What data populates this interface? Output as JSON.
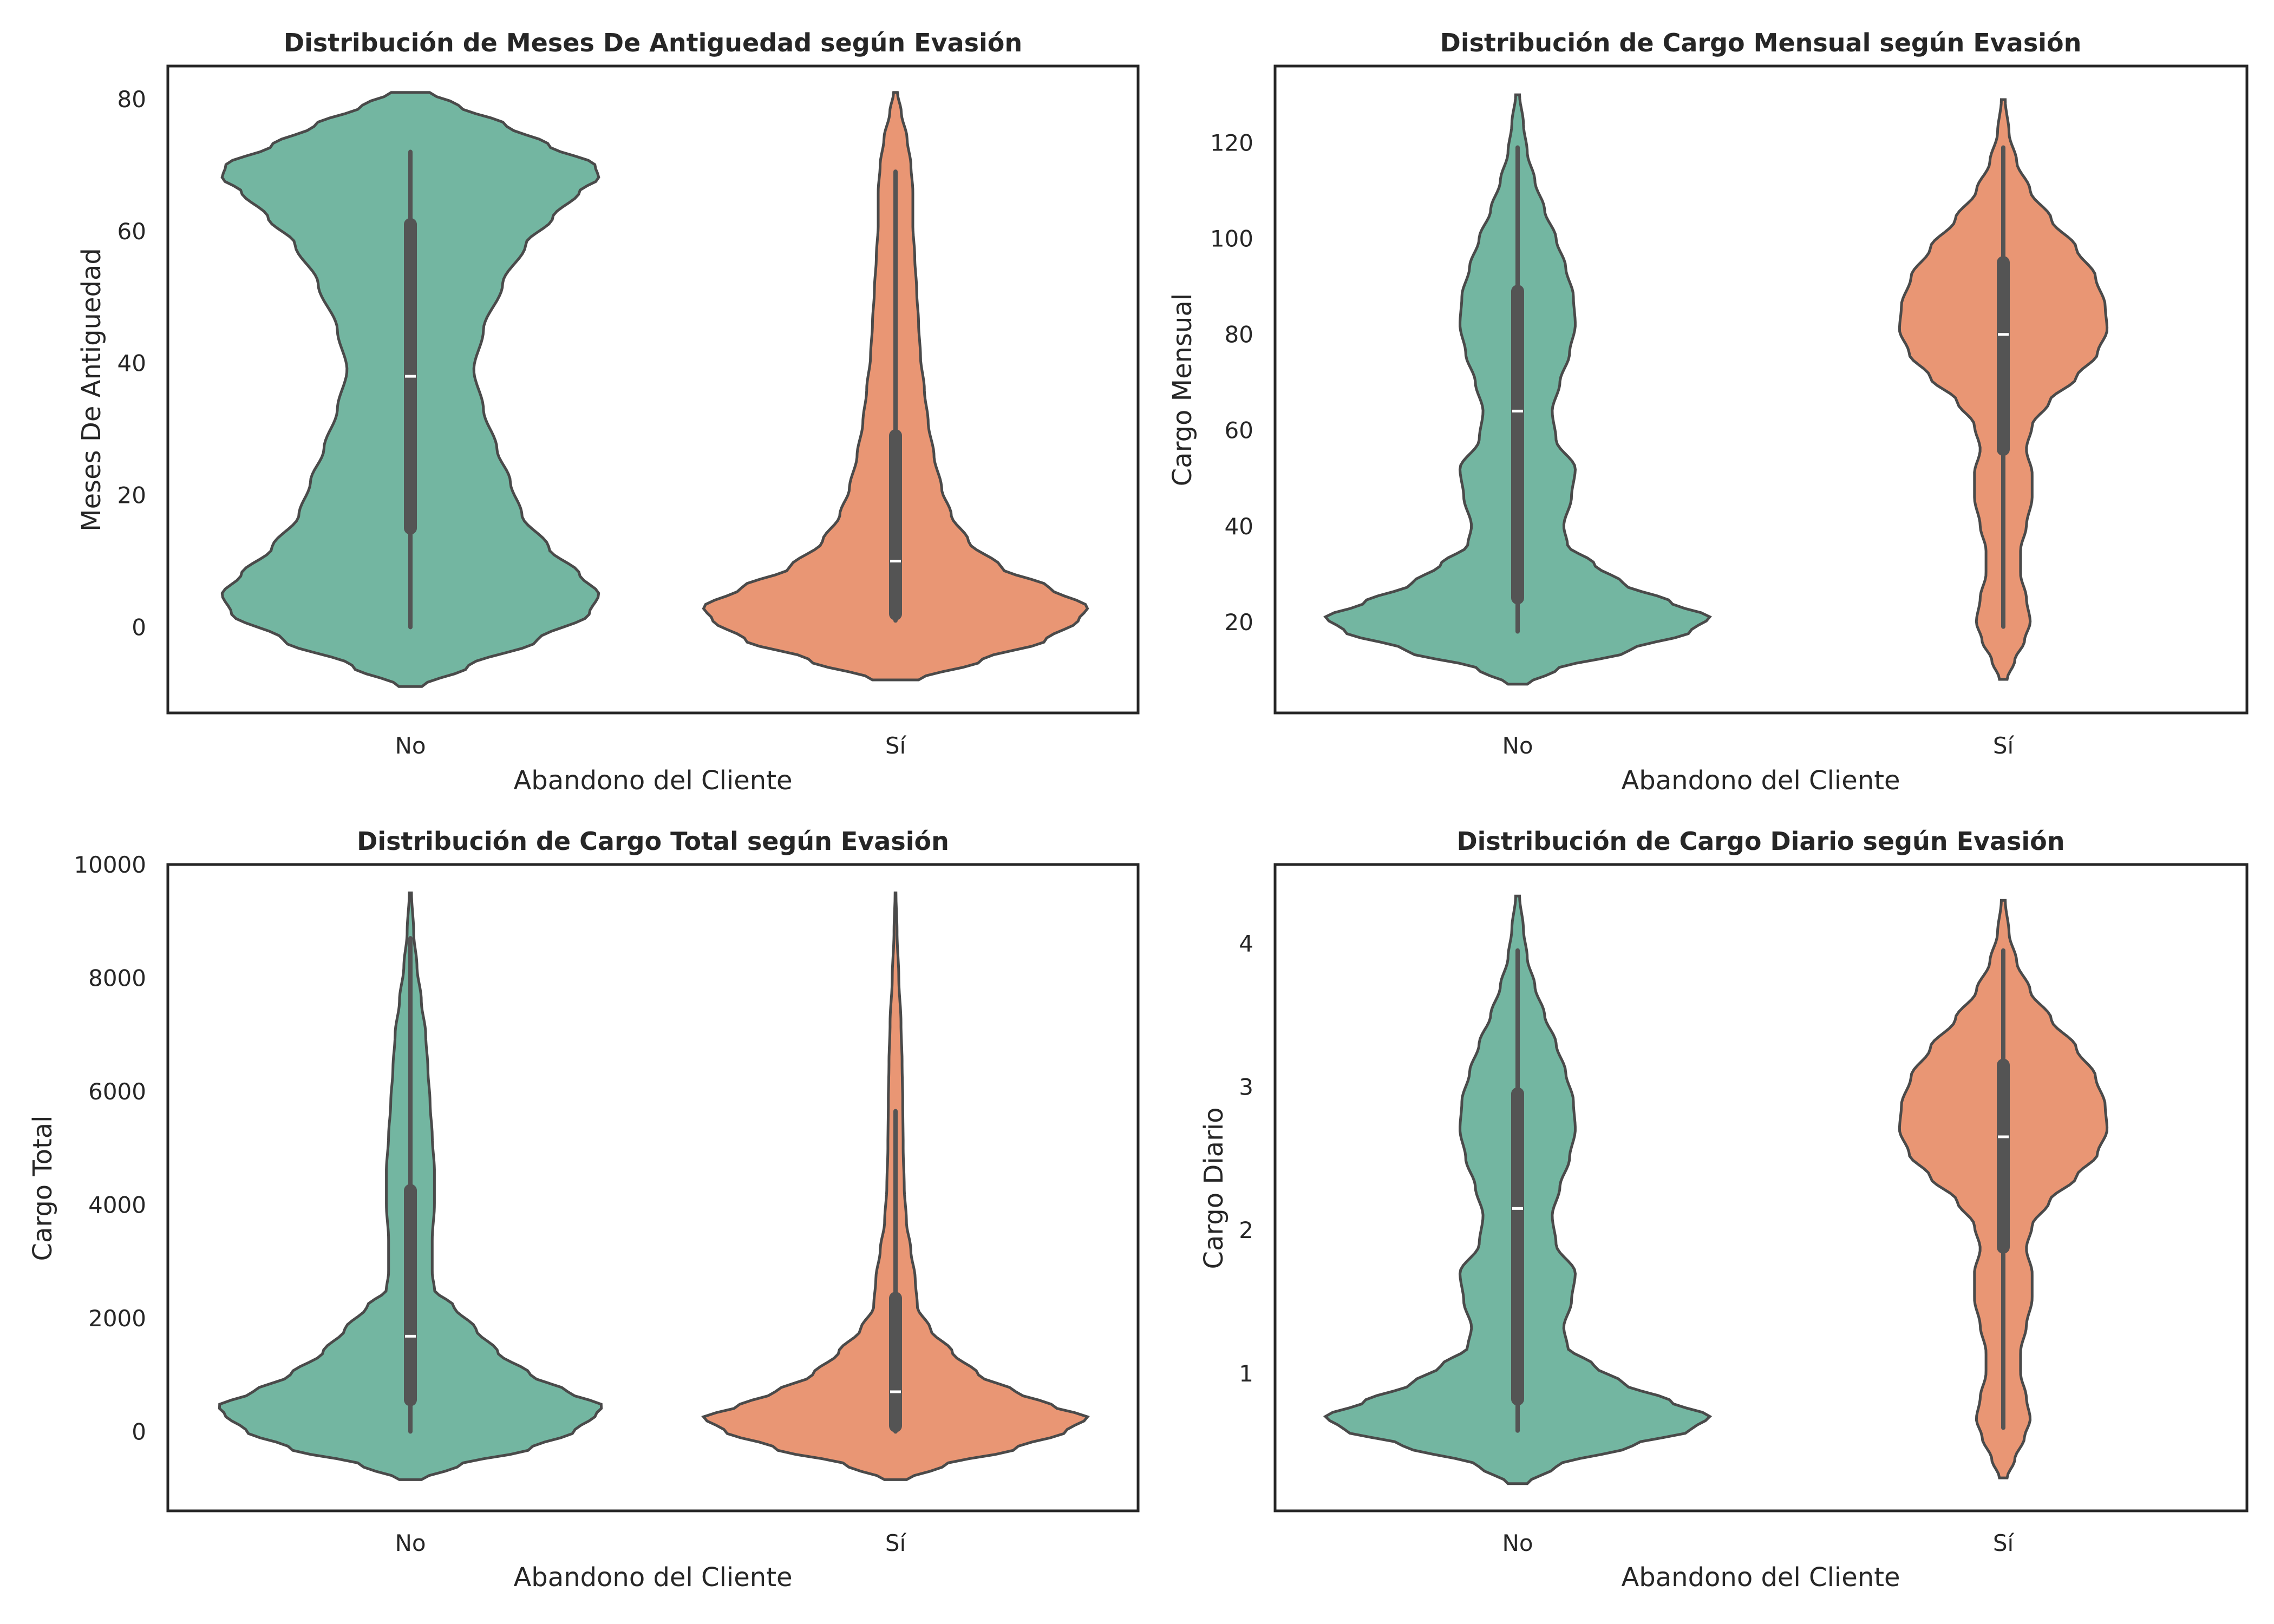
{
  "figure": {
    "colors": {
      "No": "#73b6a1",
      "Sí": "#e99674",
      "outline": "#4a4a4a",
      "box": "#545454",
      "median": "#ffffff"
    }
  },
  "chart_data": [
    {
      "type": "violin",
      "title": "Distribución de Meses De Antiguedad según Evasión",
      "xlabel": "Abandono del Cliente",
      "ylabel": "Meses De Antiguedad",
      "categories": [
        "No",
        "Sí"
      ],
      "ylim": [
        -13,
        85
      ],
      "yticks": [
        "0",
        "20",
        "40",
        "60",
        "80"
      ],
      "grid": false,
      "series": [
        {
          "category": "No",
          "color": "#73b6a1",
          "whisker": [
            0,
            72
          ],
          "box": [
            15,
            61
          ],
          "median": 38,
          "density_range": [
            -9,
            81
          ],
          "density": [
            [
              -9,
              0.06
            ],
            [
              -6,
              0.3
            ],
            [
              -2,
              0.66
            ],
            [
              2,
              0.93
            ],
            [
              5,
              0.98
            ],
            [
              8,
              0.88
            ],
            [
              12,
              0.72
            ],
            [
              17,
              0.58
            ],
            [
              22,
              0.52
            ],
            [
              27,
              0.45
            ],
            [
              33,
              0.38
            ],
            [
              39,
              0.33
            ],
            [
              45,
              0.38
            ],
            [
              52,
              0.48
            ],
            [
              58,
              0.6
            ],
            [
              62,
              0.74
            ],
            [
              66,
              0.88
            ],
            [
              68,
              0.98
            ],
            [
              70,
              0.96
            ],
            [
              73,
              0.72
            ],
            [
              76,
              0.5
            ],
            [
              79,
              0.25
            ],
            [
              81,
              0.1
            ]
          ]
        },
        {
          "category": "Sí",
          "color": "#e99674",
          "whisker": [
            1,
            69
          ],
          "box": [
            2,
            29
          ],
          "median": 10,
          "density_range": [
            -8,
            81
          ],
          "density": [
            [
              -8,
              0.12
            ],
            [
              -5,
              0.45
            ],
            [
              -2,
              0.78
            ],
            [
              1,
              0.95
            ],
            [
              3,
              1.0
            ],
            [
              6,
              0.8
            ],
            [
              9,
              0.55
            ],
            [
              13,
              0.38
            ],
            [
              17,
              0.29
            ],
            [
              21,
              0.24
            ],
            [
              26,
              0.2
            ],
            [
              31,
              0.17
            ],
            [
              36,
              0.15
            ],
            [
              41,
              0.13
            ],
            [
              46,
              0.12
            ],
            [
              51,
              0.11
            ],
            [
              56,
              0.1
            ],
            [
              61,
              0.09
            ],
            [
              66,
              0.09
            ],
            [
              70,
              0.08
            ],
            [
              74,
              0.06
            ],
            [
              78,
              0.03
            ],
            [
              81,
              0.01
            ]
          ]
        }
      ]
    },
    {
      "type": "violin",
      "title": "Distribución de Cargo Mensual según Evasión",
      "xlabel": "Abandono del Cliente",
      "ylabel": "Cargo Mensual",
      "categories": [
        "No",
        "Sí"
      ],
      "ylim": [
        1,
        136
      ],
      "yticks": [
        "20",
        "40",
        "60",
        "80",
        "100",
        "120"
      ],
      "grid": false,
      "series": [
        {
          "category": "No",
          "color": "#73b6a1",
          "whisker": [
            18,
            119
          ],
          "box": [
            25,
            89
          ],
          "median": 64,
          "density_range": [
            7,
            130
          ],
          "density": [
            [
              7,
              0.05
            ],
            [
              10,
              0.2
            ],
            [
              14,
              0.58
            ],
            [
              18,
              0.9
            ],
            [
              21,
              1.0
            ],
            [
              24,
              0.8
            ],
            [
              28,
              0.55
            ],
            [
              32,
              0.4
            ],
            [
              36,
              0.26
            ],
            [
              40,
              0.24
            ],
            [
              46,
              0.28
            ],
            [
              52,
              0.3
            ],
            [
              58,
              0.2
            ],
            [
              64,
              0.18
            ],
            [
              70,
              0.22
            ],
            [
              76,
              0.27
            ],
            [
              82,
              0.3
            ],
            [
              88,
              0.29
            ],
            [
              94,
              0.25
            ],
            [
              100,
              0.2
            ],
            [
              106,
              0.14
            ],
            [
              112,
              0.09
            ],
            [
              118,
              0.05
            ],
            [
              124,
              0.03
            ],
            [
              130,
              0.01
            ]
          ]
        },
        {
          "category": "Sí",
          "color": "#e99674",
          "whisker": [
            19,
            119
          ],
          "box": [
            56,
            95
          ],
          "median": 80,
          "density_range": [
            8,
            129
          ],
          "density": [
            [
              8,
              0.02
            ],
            [
              12,
              0.06
            ],
            [
              16,
              0.11
            ],
            [
              20,
              0.14
            ],
            [
              25,
              0.12
            ],
            [
              30,
              0.09
            ],
            [
              35,
              0.09
            ],
            [
              40,
              0.12
            ],
            [
              46,
              0.15
            ],
            [
              51,
              0.15
            ],
            [
              56,
              0.12
            ],
            [
              61,
              0.15
            ],
            [
              66,
              0.24
            ],
            [
              71,
              0.38
            ],
            [
              76,
              0.49
            ],
            [
              81,
              0.54
            ],
            [
              86,
              0.53
            ],
            [
              92,
              0.48
            ],
            [
              98,
              0.38
            ],
            [
              104,
              0.25
            ],
            [
              110,
              0.14
            ],
            [
              116,
              0.07
            ],
            [
              122,
              0.03
            ],
            [
              129,
              0.01
            ]
          ]
        }
      ]
    },
    {
      "type": "violin",
      "title": "Distribución de Cargo Total según Evasión",
      "xlabel": "Abandono del Cliente",
      "ylabel": "Cargo Total",
      "categories": [
        "No",
        "Sí"
      ],
      "ylim": [
        -1400,
        10000
      ],
      "yticks": [
        "0",
        "2000",
        "4000",
        "6000",
        "8000",
        "10000"
      ],
      "grid": false,
      "series": [
        {
          "category": "No",
          "color": "#73b6a1",
          "whisker": [
            0,
            8700
          ],
          "box": [
            560,
            4250
          ],
          "median": 1680,
          "density_range": [
            -850,
            9500
          ],
          "density": [
            [
              -850,
              0.05
            ],
            [
              -600,
              0.22
            ],
            [
              -300,
              0.55
            ],
            [
              0,
              0.75
            ],
            [
              300,
              0.85
            ],
            [
              450,
              0.88
            ],
            [
              700,
              0.72
            ],
            [
              1000,
              0.55
            ],
            [
              1400,
              0.4
            ],
            [
              1800,
              0.3
            ],
            [
              2200,
              0.2
            ],
            [
              2500,
              0.11
            ],
            [
              2800,
              0.1
            ],
            [
              3400,
              0.1
            ],
            [
              4000,
              0.11
            ],
            [
              4600,
              0.11
            ],
            [
              5200,
              0.1
            ],
            [
              5800,
              0.09
            ],
            [
              6400,
              0.08
            ],
            [
              7000,
              0.07
            ],
            [
              7600,
              0.05
            ],
            [
              8200,
              0.03
            ],
            [
              8800,
              0.015
            ],
            [
              9500,
              0.005
            ]
          ]
        },
        {
          "category": "Sí",
          "color": "#e99674",
          "whisker": [
            0,
            5650
          ],
          "box": [
            100,
            2350
          ],
          "median": 700,
          "density_range": [
            -850,
            9500
          ],
          "density": [
            [
              -850,
              0.05
            ],
            [
              -600,
              0.22
            ],
            [
              -300,
              0.55
            ],
            [
              0,
              0.78
            ],
            [
              250,
              0.88
            ],
            [
              450,
              0.72
            ],
            [
              700,
              0.55
            ],
            [
              1000,
              0.38
            ],
            [
              1400,
              0.26
            ],
            [
              1800,
              0.16
            ],
            [
              2200,
              0.1
            ],
            [
              2700,
              0.09
            ],
            [
              3200,
              0.07
            ],
            [
              3700,
              0.05
            ],
            [
              4300,
              0.04
            ],
            [
              5000,
              0.035
            ],
            [
              5800,
              0.033
            ],
            [
              6500,
              0.03
            ],
            [
              7200,
              0.025
            ],
            [
              8000,
              0.015
            ],
            [
              8800,
              0.007
            ],
            [
              9500,
              0.002
            ]
          ]
        }
      ]
    },
    {
      "type": "violin",
      "title": "Distribución de Cargo Diario según Evasión",
      "xlabel": "Abandono del Cliente",
      "ylabel": "Cargo Diario",
      "categories": [
        "No",
        "Sí"
      ],
      "ylim": [
        0.04,
        4.55
      ],
      "yticks": [
        "1",
        "2",
        "3",
        "4"
      ],
      "grid": false,
      "series": [
        {
          "category": "No",
          "color": "#73b6a1",
          "whisker": [
            0.6,
            3.95
          ],
          "box": [
            0.82,
            2.95
          ],
          "median": 2.15,
          "density_range": [
            0.23,
            4.33
          ],
          "density": [
            [
              0.23,
              0.05
            ],
            [
              0.35,
              0.2
            ],
            [
              0.5,
              0.6
            ],
            [
              0.6,
              0.9
            ],
            [
              0.7,
              1.0
            ],
            [
              0.8,
              0.8
            ],
            [
              0.93,
              0.55
            ],
            [
              1.05,
              0.4
            ],
            [
              1.18,
              0.26
            ],
            [
              1.32,
              0.24
            ],
            [
              1.5,
              0.28
            ],
            [
              1.7,
              0.3
            ],
            [
              1.9,
              0.2
            ],
            [
              2.1,
              0.18
            ],
            [
              2.3,
              0.22
            ],
            [
              2.5,
              0.27
            ],
            [
              2.7,
              0.3
            ],
            [
              2.9,
              0.29
            ],
            [
              3.1,
              0.25
            ],
            [
              3.3,
              0.2
            ],
            [
              3.5,
              0.14
            ],
            [
              3.7,
              0.09
            ],
            [
              3.9,
              0.05
            ],
            [
              4.1,
              0.03
            ],
            [
              4.33,
              0.01
            ]
          ]
        },
        {
          "category": "Sí",
          "color": "#e99674",
          "whisker": [
            0.62,
            3.95
          ],
          "box": [
            1.88,
            3.15
          ],
          "median": 2.65,
          "density_range": [
            0.27,
            4.3
          ],
          "density": [
            [
              0.27,
              0.02
            ],
            [
              0.4,
              0.06
            ],
            [
              0.55,
              0.11
            ],
            [
              0.68,
              0.14
            ],
            [
              0.83,
              0.12
            ],
            [
              1.0,
              0.09
            ],
            [
              1.15,
              0.09
            ],
            [
              1.33,
              0.12
            ],
            [
              1.52,
              0.15
            ],
            [
              1.7,
              0.15
            ],
            [
              1.87,
              0.12
            ],
            [
              2.03,
              0.15
            ],
            [
              2.2,
              0.24
            ],
            [
              2.37,
              0.38
            ],
            [
              2.53,
              0.49
            ],
            [
              2.7,
              0.54
            ],
            [
              2.87,
              0.53
            ],
            [
              3.07,
              0.48
            ],
            [
              3.27,
              0.38
            ],
            [
              3.47,
              0.25
            ],
            [
              3.67,
              0.14
            ],
            [
              3.87,
              0.07
            ],
            [
              4.07,
              0.03
            ],
            [
              4.3,
              0.01
            ]
          ]
        }
      ]
    }
  ]
}
